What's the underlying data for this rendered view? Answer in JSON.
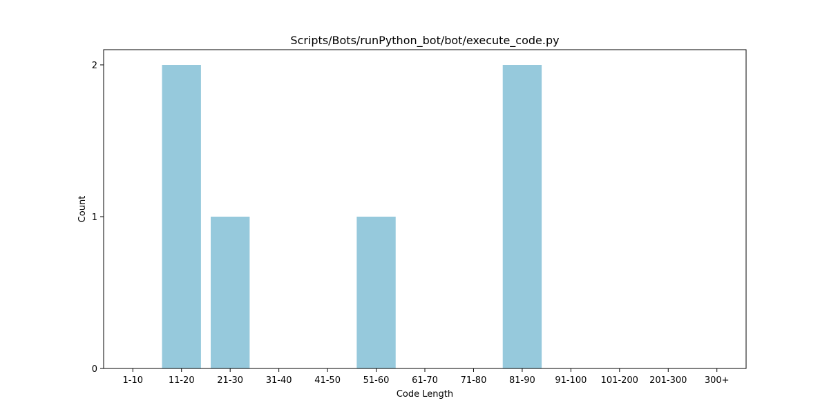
{
  "chart_data": {
    "type": "bar",
    "title": "Scripts/Bots/runPython_bot/bot/execute_code.py",
    "xlabel": "Code Length",
    "ylabel": "Count",
    "categories": [
      "1-10",
      "11-20",
      "21-30",
      "31-40",
      "41-50",
      "51-60",
      "61-70",
      "71-80",
      "81-90",
      "91-100",
      "101-200",
      "201-300",
      "300+"
    ],
    "values": [
      0,
      2,
      1,
      0,
      0,
      1,
      0,
      0,
      2,
      0,
      0,
      0,
      0
    ],
    "ylim": [
      0,
      2.1
    ],
    "yticks": [
      0,
      1,
      2
    ],
    "grid": false,
    "legend": false,
    "colors": {
      "bar": "#96c9dc",
      "axis": "#000000",
      "background": "#ffffff"
    }
  }
}
